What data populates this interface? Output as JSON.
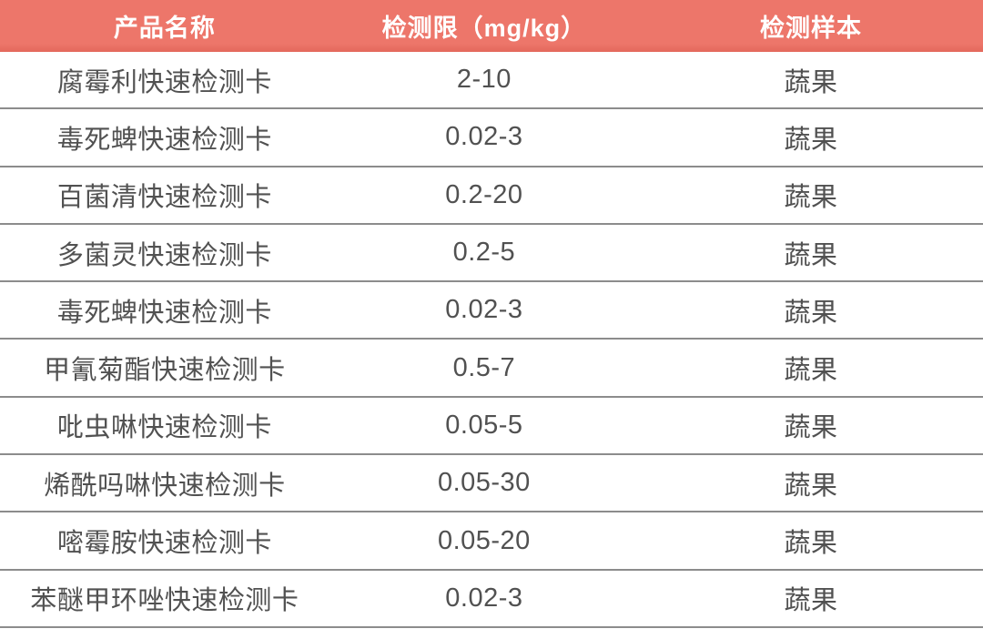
{
  "table": {
    "columns": [
      {
        "key": "name",
        "label": "产品名称"
      },
      {
        "key": "limit",
        "label": "检测限（mg/kg）"
      },
      {
        "key": "sample",
        "label": "检测样本"
      }
    ],
    "rows": [
      {
        "name": "腐霉利快速检测卡",
        "limit": "2-10",
        "sample": "蔬果"
      },
      {
        "name": "毒死蜱快速检测卡",
        "limit": "0.02-3",
        "sample": "蔬果"
      },
      {
        "name": "百菌清快速检测卡",
        "limit": "0.2-20",
        "sample": "蔬果"
      },
      {
        "name": "多菌灵快速检测卡",
        "limit": "0.2-5",
        "sample": "蔬果"
      },
      {
        "name": "毒死蜱快速检测卡",
        "limit": "0.02-3",
        "sample": "蔬果"
      },
      {
        "name": "甲氰菊酯快速检测卡",
        "limit": "0.5-7",
        "sample": "蔬果"
      },
      {
        "name": "吡虫啉快速检测卡",
        "limit": "0.05-5",
        "sample": "蔬果"
      },
      {
        "name": "烯酰吗啉快速检测卡",
        "limit": "0.05-30",
        "sample": "蔬果"
      },
      {
        "name": "嘧霉胺快速检测卡",
        "limit": "0.05-20",
        "sample": "蔬果"
      },
      {
        "name": "苯醚甲环唑快速检测卡",
        "limit": "0.02-3",
        "sample": "蔬果"
      }
    ]
  },
  "colors": {
    "header_bg": "#ED766A",
    "header_bg_edge": "#E3685C",
    "header_text": "#FFFFFF",
    "row_text": "#515151",
    "divider": "#8C8C8C",
    "page_bg": "#FFFFFF"
  }
}
